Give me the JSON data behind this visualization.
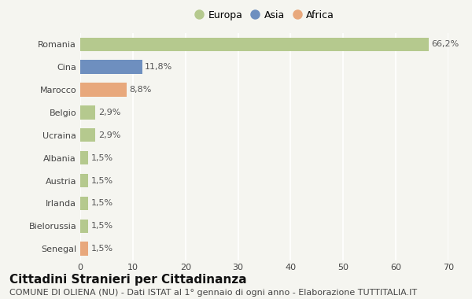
{
  "categories": [
    "Romania",
    "Cina",
    "Marocco",
    "Belgio",
    "Ucraina",
    "Albania",
    "Austria",
    "Irlanda",
    "Bielorussia",
    "Senegal"
  ],
  "values": [
    66.2,
    11.8,
    8.8,
    2.9,
    2.9,
    1.5,
    1.5,
    1.5,
    1.5,
    1.5
  ],
  "labels": [
    "66,2%",
    "11,8%",
    "8,8%",
    "2,9%",
    "2,9%",
    "1,5%",
    "1,5%",
    "1,5%",
    "1,5%",
    "1,5%"
  ],
  "colors": [
    "#b5c98e",
    "#6e8fbf",
    "#e8a87c",
    "#b5c98e",
    "#b5c98e",
    "#b5c98e",
    "#b5c98e",
    "#b5c98e",
    "#b5c98e",
    "#e8a87c"
  ],
  "legend_labels": [
    "Europa",
    "Asia",
    "Africa"
  ],
  "legend_colors": [
    "#b5c98e",
    "#6e8fbf",
    "#e8a87c"
  ],
  "xlim": [
    0,
    70
  ],
  "xticks": [
    0,
    10,
    20,
    30,
    40,
    50,
    60,
    70
  ],
  "title": "Cittadini Stranieri per Cittadinanza",
  "subtitle": "COMUNE DI OLIENA (NU) - Dati ISTAT al 1° gennaio di ogni anno - Elaborazione TUTTITALIA.IT",
  "background_color": "#f5f5f0",
  "bar_height": 0.6,
  "title_fontsize": 11,
  "subtitle_fontsize": 8,
  "label_fontsize": 8,
  "tick_fontsize": 8,
  "legend_fontsize": 9
}
